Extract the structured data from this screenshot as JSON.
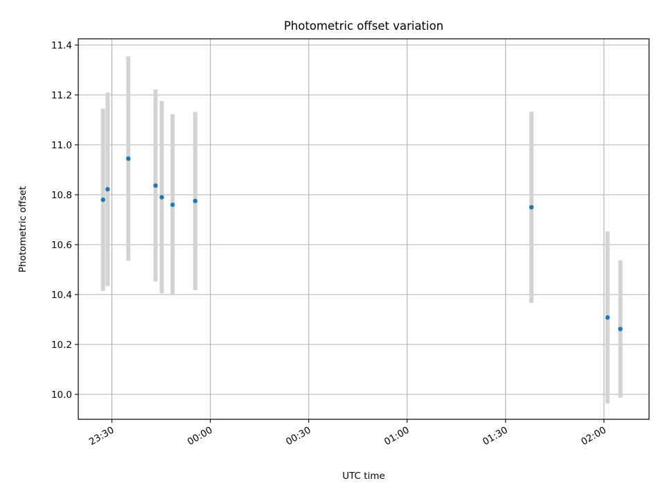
{
  "chart_data": {
    "type": "scatter",
    "title": "Photometric offset variation",
    "xlabel": "UTC time",
    "ylabel": "Photometric offset",
    "x_ticks": [
      {
        "minutes": 30,
        "label": "23:30"
      },
      {
        "minutes": 60,
        "label": "00:00"
      },
      {
        "minutes": 90,
        "label": "00:30"
      },
      {
        "minutes": 120,
        "label": "01:00"
      },
      {
        "minutes": 150,
        "label": "01:30"
      },
      {
        "minutes": 180,
        "label": "02:00"
      }
    ],
    "y_ticks": [
      10.0,
      10.2,
      10.4,
      10.6,
      10.8,
      11.0,
      11.2,
      11.4
    ],
    "xlim": [
      19.75,
      193.75
    ],
    "ylim": [
      9.9,
      11.425
    ],
    "grid": true,
    "colors": {
      "marker": "#1f77b4",
      "errorbar": "#d3d3d3",
      "grid": "#b0b0b0"
    },
    "points": [
      {
        "t": "23:27:17",
        "minutes": 27.3,
        "y": 10.78,
        "err": 0.365
      },
      {
        "t": "23:28:43",
        "minutes": 28.7,
        "y": 10.822,
        "err": 0.388
      },
      {
        "t": "23:35:02",
        "minutes": 35.0,
        "y": 10.945,
        "err": 0.41
      },
      {
        "t": "23:43:16",
        "minutes": 43.3,
        "y": 10.837,
        "err": 0.385
      },
      {
        "t": "23:45:13",
        "minutes": 45.2,
        "y": 10.79,
        "err": 0.385
      },
      {
        "t": "23:48:32",
        "minutes": 48.5,
        "y": 10.76,
        "err": 0.363
      },
      {
        "t": "23:55:22",
        "minutes": 55.4,
        "y": 10.775,
        "err": 0.357
      },
      {
        "t": "01:37:55",
        "minutes": 157.9,
        "y": 10.75,
        "err": 0.383
      },
      {
        "t": "02:01:04",
        "minutes": 181.1,
        "y": 10.308,
        "err": 0.345
      },
      {
        "t": "02:05:02",
        "minutes": 185.0,
        "y": 10.262,
        "err": 0.275
      }
    ]
  }
}
